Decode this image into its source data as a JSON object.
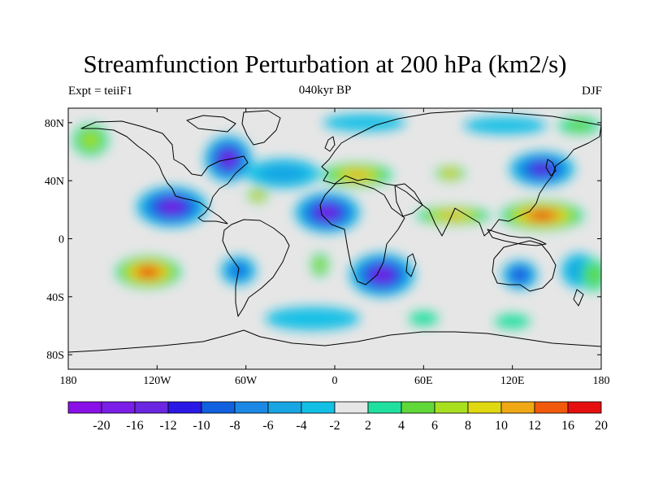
{
  "title": "Streamfunction Perturbation at 200 hPa (km2/s)",
  "left_label": "Expt = teiiF1",
  "center_label": "040kyr BP",
  "right_label": "DJF",
  "map": {
    "projection": "cylindrical-equidistant",
    "lon_range": [
      -180,
      180
    ],
    "lat_range": [
      -90,
      90
    ],
    "lon_ticks": [
      {
        "value": -180,
        "label": "180"
      },
      {
        "value": -120,
        "label": "120W"
      },
      {
        "value": -60,
        "label": "60W"
      },
      {
        "value": 0,
        "label": "0"
      },
      {
        "value": 60,
        "label": "60E"
      },
      {
        "value": 120,
        "label": "120E"
      },
      {
        "value": 180,
        "label": "180"
      }
    ],
    "lat_ticks": [
      {
        "value": 80,
        "label": "80N"
      },
      {
        "value": 40,
        "label": "40N"
      },
      {
        "value": 0,
        "label": "0"
      },
      {
        "value": -40,
        "label": "40S"
      },
      {
        "value": -80,
        "label": "80S"
      }
    ],
    "background_color": "#e6e6e6"
  },
  "colorbar": {
    "labels": [
      "-20",
      "-16",
      "-12",
      "-10",
      "-8",
      "-6",
      "-4",
      "-2",
      "2",
      "4",
      "6",
      "8",
      "10",
      "12",
      "16",
      "20"
    ],
    "colors": [
      "#8a10e8",
      "#7a1ee8",
      "#6a26e0",
      "#2a18e6",
      "#1060e0",
      "#1a88e4",
      "#17a5e4",
      "#12c0e6",
      "#e6e6e6",
      "#20e0a0",
      "#60d83a",
      "#a8e020",
      "#e0d810",
      "#f0a814",
      "#f05a0a",
      "#e60f0f"
    ]
  },
  "anomalies": [
    {
      "lon": -110,
      "lat": 22,
      "rx": 24,
      "ry": 14,
      "value": -20
    },
    {
      "lon": -72,
      "lat": 55,
      "rx": 16,
      "ry": 16,
      "value": -18
    },
    {
      "lon": -5,
      "lat": 18,
      "rx": 22,
      "ry": 14,
      "value": -20
    },
    {
      "lon": 32,
      "lat": -25,
      "rx": 22,
      "ry": 15,
      "value": -20
    },
    {
      "lon": 140,
      "lat": 48,
      "rx": 22,
      "ry": 12,
      "value": -16
    },
    {
      "lon": 125,
      "lat": -25,
      "rx": 12,
      "ry": 10,
      "value": -12
    },
    {
      "lon": -65,
      "lat": -22,
      "rx": 12,
      "ry": 10,
      "value": -10
    },
    {
      "lon": -35,
      "lat": 45,
      "rx": 25,
      "ry": 10,
      "value": -6
    },
    {
      "lon": 20,
      "lat": 80,
      "rx": 28,
      "ry": 6,
      "value": -4
    },
    {
      "lon": 115,
      "lat": 78,
      "rx": 28,
      "ry": 6,
      "value": -4
    },
    {
      "lon": -15,
      "lat": -55,
      "rx": 32,
      "ry": 8,
      "value": -4
    },
    {
      "lon": 165,
      "lat": -22,
      "rx": 12,
      "ry": 12,
      "value": -6
    },
    {
      "lon": -126,
      "lat": -23,
      "rx": 22,
      "ry": 11,
      "value": 20
    },
    {
      "lon": 140,
      "lat": 16,
      "rx": 28,
      "ry": 10,
      "value": 20
    },
    {
      "lon": 80,
      "lat": 16,
      "rx": 25,
      "ry": 6,
      "value": 12
    },
    {
      "lon": 15,
      "lat": 44,
      "rx": 24,
      "ry": 8,
      "value": 12
    },
    {
      "lon": 78,
      "lat": 45,
      "rx": 10,
      "ry": 5,
      "value": 12
    },
    {
      "lon": -52,
      "lat": 30,
      "rx": 7,
      "ry": 5,
      "value": 12
    },
    {
      "lon": -165,
      "lat": 68,
      "rx": 12,
      "ry": 11,
      "value": 8
    },
    {
      "lon": -10,
      "lat": -18,
      "rx": 6,
      "ry": 8,
      "value": 8
    },
    {
      "lon": 175,
      "lat": -25,
      "rx": 9,
      "ry": 11,
      "value": 6
    },
    {
      "lon": 165,
      "lat": 78,
      "rx": 14,
      "ry": 6,
      "value": 6
    },
    {
      "lon": 60,
      "lat": -55,
      "rx": 10,
      "ry": 5,
      "value": 4
    },
    {
      "lon": 120,
      "lat": -57,
      "rx": 12,
      "ry": 5,
      "value": 4
    }
  ]
}
